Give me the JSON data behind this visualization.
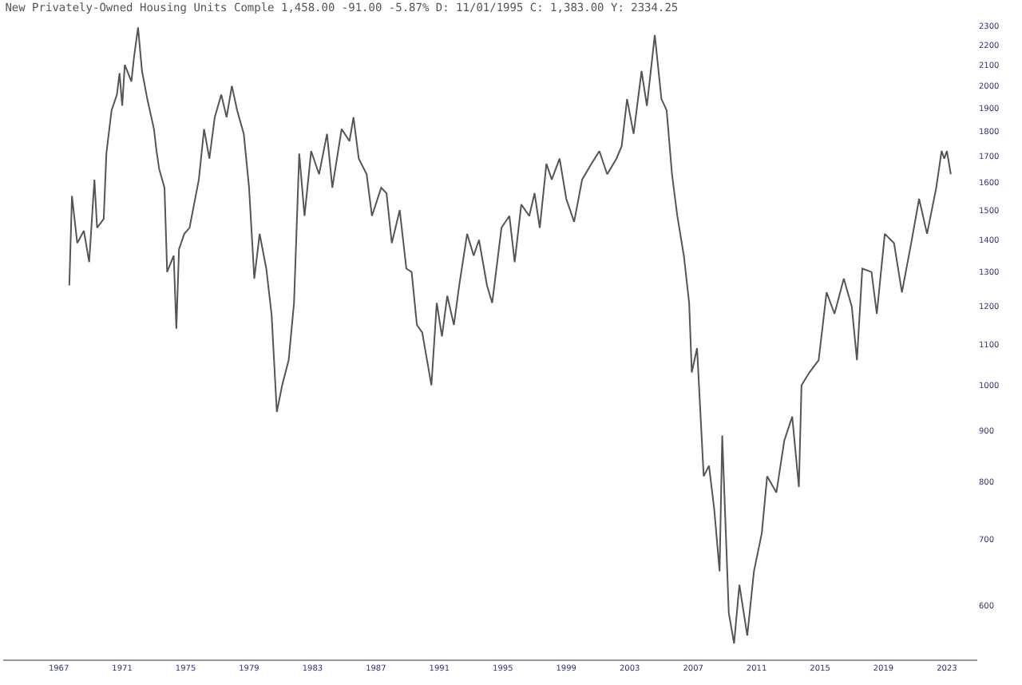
{
  "chart_data": {
    "type": "line",
    "title": "New Privately-Owned Housing Units Comple 1,458.00 -91.00 -5.87% D: 11/01/1995 C: 1,383.00 Y: 2334.25",
    "x": [
      "1967-09",
      "1967-11",
      "1968-03",
      "1968-08",
      "1968-12",
      "1969-04",
      "1969-06",
      "1969-11",
      "1970-01",
      "1970-05",
      "1970-09",
      "1970-11",
      "1971-01",
      "1971-03",
      "1971-08",
      "1971-10",
      "1972-01",
      "1972-04",
      "1972-08",
      "1973-01",
      "1973-03",
      "1973-05",
      "1973-09",
      "1973-11",
      "1974-04",
      "1974-06",
      "1974-08",
      "1974-12",
      "1975-04",
      "1975-11",
      "1976-03",
      "1976-07",
      "1976-11",
      "1977-04",
      "1977-08",
      "1977-12",
      "1978-04",
      "1978-09",
      "1979-01",
      "1979-05",
      "1979-09",
      "1980-02",
      "1980-06",
      "1980-10",
      "1981-02",
      "1981-07",
      "1981-11",
      "1982-03",
      "1982-07",
      "1982-12",
      "1983-06",
      "1983-12",
      "1984-04",
      "1984-11",
      "1985-05",
      "1985-08",
      "1985-12",
      "1986-06",
      "1986-10",
      "1987-05",
      "1987-09",
      "1988-01",
      "1988-07",
      "1988-12",
      "1989-04",
      "1989-08",
      "1989-12",
      "1990-07",
      "1990-11",
      "1991-03",
      "1991-07",
      "1991-12",
      "1992-04",
      "1992-10",
      "1993-03",
      "1993-07",
      "1994-01",
      "1994-05",
      "1994-12",
      "1995-06",
      "1995-10",
      "1996-03",
      "1996-09",
      "1997-01",
      "1997-05",
      "1997-10",
      "1998-02",
      "1998-08",
      "1999-01",
      "1999-07",
      "2000-01",
      "2000-08",
      "2001-02",
      "2001-08",
      "2002-03",
      "2002-07",
      "2002-11",
      "2003-04",
      "2003-10",
      "2004-02",
      "2004-08",
      "2005-01",
      "2005-05",
      "2005-09",
      "2006-01",
      "2006-06",
      "2006-10",
      "2006-12",
      "2007-04",
      "2007-09",
      "2008-01",
      "2008-05",
      "2008-09",
      "2008-11",
      "2009-04",
      "2009-08",
      "2009-12",
      "2010-06",
      "2010-11",
      "2011-05",
      "2011-09",
      "2012-04",
      "2012-10",
      "2013-04",
      "2013-09",
      "2013-11",
      "2014-05",
      "2014-12",
      "2015-06",
      "2015-12",
      "2016-07",
      "2017-01",
      "2017-05",
      "2017-09",
      "2018-04",
      "2018-08",
      "2019-02",
      "2019-09",
      "2020-03",
      "2020-10",
      "2021-04",
      "2021-10",
      "2022-05",
      "2022-09",
      "2022-11",
      "2023-01",
      "2023-04"
    ],
    "values": [
      1260,
      1550,
      1390,
      1430,
      1330,
      1610,
      1440,
      1470,
      1710,
      1890,
      1960,
      2060,
      1910,
      2100,
      2020,
      2140,
      2290,
      2070,
      1940,
      1810,
      1720,
      1650,
      1580,
      1300,
      1350,
      1140,
      1370,
      1420,
      1440,
      1610,
      1810,
      1690,
      1860,
      1960,
      1860,
      2000,
      1890,
      1790,
      1580,
      1280,
      1420,
      1310,
      1180,
      940,
      1000,
      1060,
      1210,
      1710,
      1480,
      1720,
      1630,
      1790,
      1580,
      1810,
      1760,
      1860,
      1690,
      1630,
      1480,
      1580,
      1560,
      1390,
      1500,
      1310,
      1300,
      1150,
      1130,
      1000,
      1210,
      1120,
      1230,
      1150,
      1260,
      1420,
      1350,
      1400,
      1260,
      1210,
      1440,
      1480,
      1330,
      1520,
      1480,
      1560,
      1440,
      1670,
      1610,
      1690,
      1540,
      1460,
      1610,
      1670,
      1720,
      1630,
      1690,
      1740,
      1940,
      1790,
      2070,
      1910,
      2250,
      1940,
      1890,
      1630,
      1480,
      1350,
      1210,
      1030,
      1090,
      810,
      830,
      750,
      650,
      890,
      590,
      550,
      630,
      560,
      650,
      710,
      810,
      780,
      880,
      930,
      790,
      1000,
      1030,
      1060,
      1240,
      1180,
      1280,
      1200,
      1060,
      1310,
      1300,
      1180,
      1420,
      1390,
      1240,
      1390,
      1540,
      1420,
      1580,
      1720,
      1690,
      1720,
      1630
    ],
    "color": "#555555",
    "xlim": [
      "1963-07",
      "2024-12"
    ],
    "xticks": [
      {
        "value": "1967",
        "label": "1967"
      },
      {
        "value": "1971",
        "label": "1971"
      },
      {
        "value": "1975",
        "label": "1975"
      },
      {
        "value": "1979",
        "label": "1979"
      },
      {
        "value": "1983",
        "label": "1983"
      },
      {
        "value": "1987",
        "label": "1987"
      },
      {
        "value": "1991",
        "label": "1991"
      },
      {
        "value": "1995",
        "label": "1995"
      },
      {
        "value": "1999",
        "label": "1999"
      },
      {
        "value": "2003",
        "label": "2003"
      },
      {
        "value": "2007",
        "label": "2007"
      },
      {
        "value": "2011",
        "label": "2011"
      },
      {
        "value": "2015",
        "label": "2015"
      },
      {
        "value": "2019",
        "label": "2019"
      },
      {
        "value": "2023",
        "label": "2023"
      }
    ],
    "ylim": [
      530,
      2300
    ],
    "yticks": [
      600,
      700,
      800,
      900,
      1000,
      1100,
      1200,
      1300,
      1400,
      1500,
      1600,
      1700,
      1800,
      1900,
      2000,
      2100,
      2200,
      2300
    ],
    "log": "y",
    "legend": false,
    "marker": "none",
    "line_style": "solid"
  }
}
